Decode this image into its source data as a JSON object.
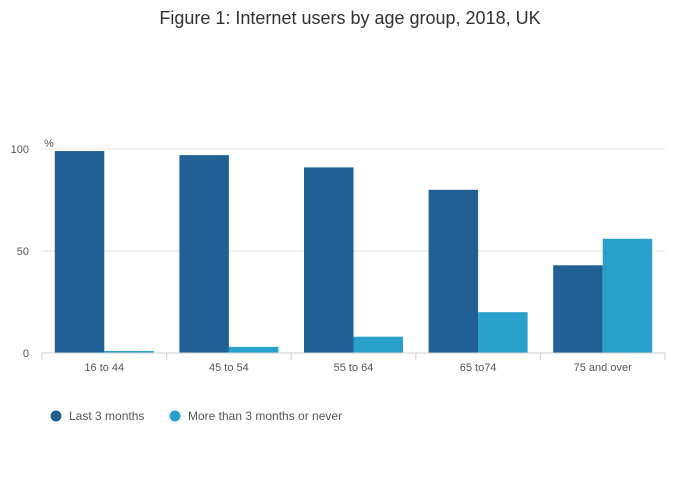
{
  "chart_data": {
    "type": "bar",
    "title": "Figure 1: Internet users by age group, 2018, UK",
    "ylabel": "%",
    "xlabel": "",
    "ylim": [
      0,
      100
    ],
    "yticks": [
      0,
      50,
      100
    ],
    "grid": true,
    "categories": [
      "16 to 44",
      "45 to 54",
      "55 to 64",
      "65 to74",
      "75 and over"
    ],
    "series": [
      {
        "name": "Last 3 months",
        "color": "#206095",
        "values": [
          99,
          97,
          91,
          80,
          43
        ]
      },
      {
        "name": "More than 3 months or never",
        "color": "#27a0cc",
        "values": [
          1,
          3,
          8,
          20,
          56
        ]
      }
    ],
    "legend_position": "bottom-left"
  }
}
